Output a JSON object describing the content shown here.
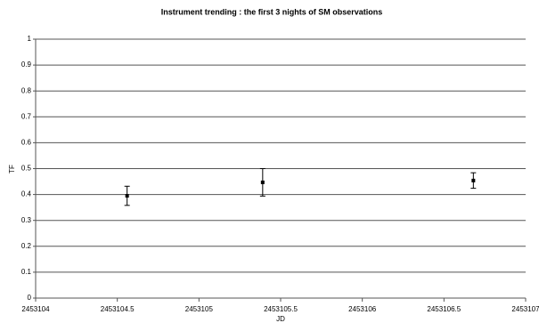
{
  "chart_data": {
    "type": "scatter",
    "title": "Instrument trending : the first 3 nights of SM observations",
    "x_label": "JD",
    "y_label": "TF",
    "x": [
      2453104.56,
      2453105.39,
      2453106.68
    ],
    "values": [
      0.395,
      0.447,
      0.454
    ],
    "errors": [
      0.037,
      0.053,
      0.03
    ],
    "color": "#000000",
    "xlim": [
      2453104,
      2453107
    ],
    "xticks": [
      2453104,
      2453104.5,
      2453105,
      2453105.5,
      2453106,
      2453106.5,
      2453107
    ],
    "ylim": [
      0,
      1
    ],
    "yticks": [
      0,
      0.1,
      0.2,
      0.3,
      0.4,
      0.5,
      0.6,
      0.7,
      0.8,
      0.9,
      1
    ],
    "grid": true
  }
}
